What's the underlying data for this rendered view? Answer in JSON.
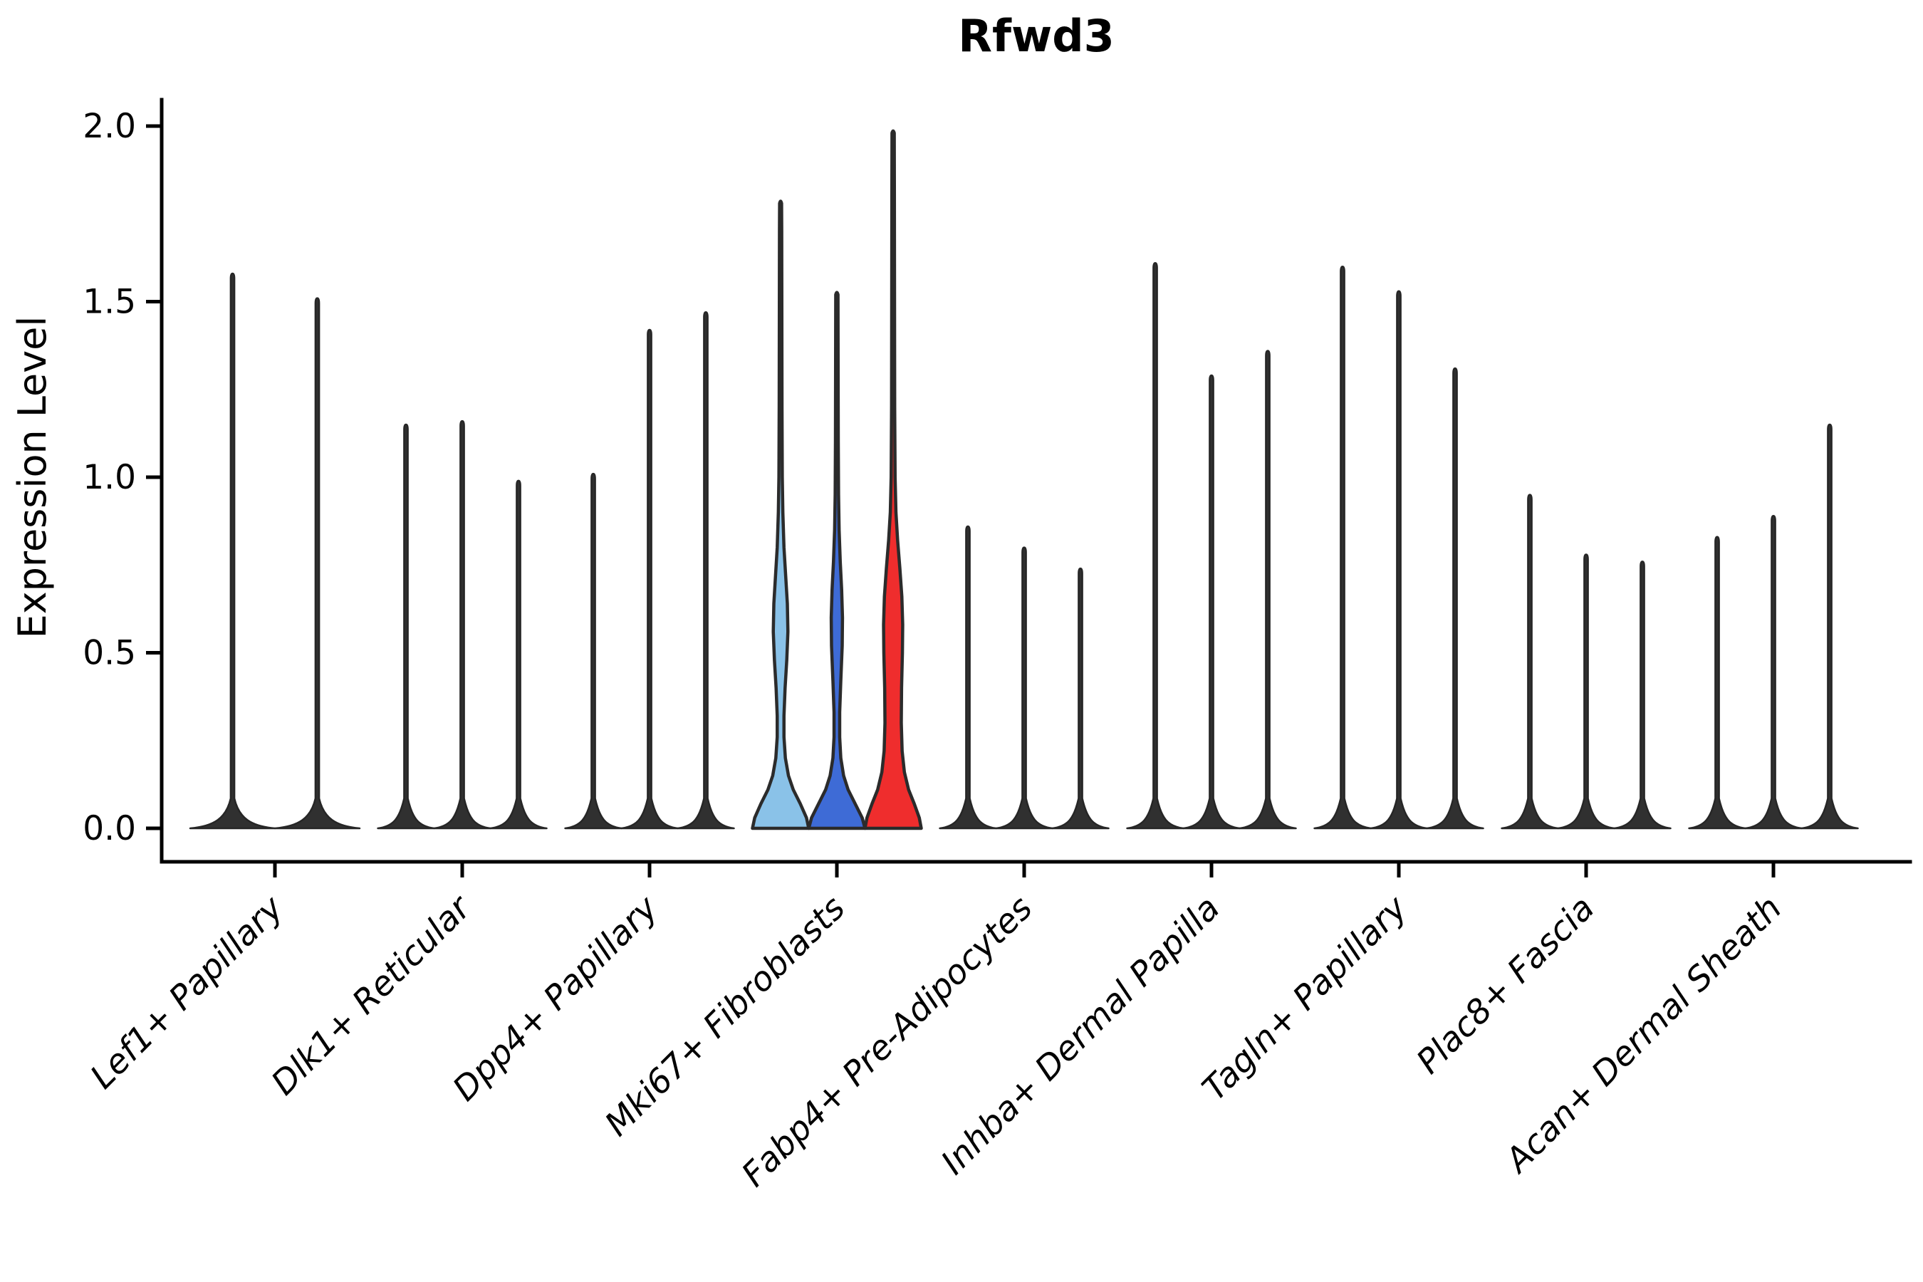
{
  "title": "Rfwd3",
  "y_axis": {
    "label": "Expression Level",
    "tick_labels": [
      "0.0",
      "0.5",
      "1.0",
      "1.5",
      "2.0"
    ],
    "tick_values": [
      0.0,
      0.5,
      1.0,
      1.5,
      2.0
    ]
  },
  "x_axis": {
    "categories": [
      "Lef1+ Papillary",
      "Dlk1+ Reticular",
      "Dpp4+ Papillary",
      "Mki67+ Fibroblasts",
      "Fabp4+ Pre-Adipocytes",
      "Inhba+ Dermal Papilla",
      "Tagln+ Papillary",
      "Plac8+ Fascia",
      "Acan+ Dermal Sheath"
    ]
  },
  "colors": {
    "spike_fill": "#303030",
    "spike_stroke": "#262626",
    "violin_outline": "#2b2b2b",
    "light_blue": "#8AC2E8",
    "blue": "#3E6BD6",
    "red": "#EF2D2D",
    "background": "#ffffff"
  },
  "chart_data": {
    "type": "violin",
    "title": "Rfwd3",
    "xlabel": "",
    "ylabel": "Expression Level",
    "ylim": [
      0,
      2.07
    ],
    "yticks": [
      0.0,
      0.5,
      1.0,
      1.5,
      2.0
    ],
    "grid": false,
    "legend": "none",
    "x_tick_angle_deg": 45,
    "categories": [
      "Lef1+ Papillary",
      "Dlk1+ Reticular",
      "Dpp4+ Papillary",
      "Mki67+ Fibroblasts",
      "Fabp4+ Pre-Adipocytes",
      "Inhba+ Dermal Papilla",
      "Tagln+ Papillary",
      "Plac8+ Fascia",
      "Acan+ Dermal Sheath"
    ],
    "groups": [
      {
        "category": "Lef1+ Papillary",
        "violins": [
          {
            "max": 1.58,
            "style": "spike",
            "fill": "#303030"
          },
          {
            "max": 1.51,
            "style": "spike",
            "fill": "#303030"
          }
        ]
      },
      {
        "category": "Dlk1+ Reticular",
        "violins": [
          {
            "max": 1.15,
            "style": "spike",
            "fill": "#303030"
          },
          {
            "max": 1.16,
            "style": "spike",
            "fill": "#303030"
          },
          {
            "max": 0.99,
            "style": "spike",
            "fill": "#303030"
          }
        ]
      },
      {
        "category": "Dpp4+ Papillary",
        "violins": [
          {
            "max": 1.01,
            "style": "spike",
            "fill": "#303030"
          },
          {
            "max": 1.42,
            "style": "spike",
            "fill": "#303030"
          },
          {
            "max": 1.47,
            "style": "spike",
            "fill": "#303030"
          }
        ]
      },
      {
        "category": "Mki67+ Fibroblasts",
        "violins": [
          {
            "max": 1.78,
            "style": "violin",
            "fill": "#8AC2E8",
            "profile": [
              [
                0,
                1.0
              ],
              [
                0.03,
                0.92
              ],
              [
                0.07,
                0.7
              ],
              [
                0.11,
                0.45
              ],
              [
                0.15,
                0.28
              ],
              [
                0.2,
                0.17
              ],
              [
                0.26,
                0.12
              ],
              [
                0.32,
                0.12
              ],
              [
                0.4,
                0.16
              ],
              [
                0.48,
                0.22
              ],
              [
                0.56,
                0.26
              ],
              [
                0.64,
                0.24
              ],
              [
                0.72,
                0.18
              ],
              [
                0.8,
                0.12
              ],
              [
                0.9,
                0.08
              ],
              [
                1.0,
                0.06
              ],
              [
                1.2,
                0.05
              ],
              [
                1.45,
                0.045
              ],
              [
                1.7,
                0.04
              ],
              [
                1.78,
                0.035
              ]
            ]
          },
          {
            "max": 1.52,
            "style": "violin",
            "fill": "#3E6BD6",
            "profile": [
              [
                0,
                1.0
              ],
              [
                0.03,
                0.9
              ],
              [
                0.07,
                0.65
              ],
              [
                0.11,
                0.4
              ],
              [
                0.15,
                0.24
              ],
              [
                0.2,
                0.14
              ],
              [
                0.26,
                0.1
              ],
              [
                0.33,
                0.1
              ],
              [
                0.42,
                0.14
              ],
              [
                0.52,
                0.19
              ],
              [
                0.6,
                0.2
              ],
              [
                0.68,
                0.17
              ],
              [
                0.76,
                0.12
              ],
              [
                0.85,
                0.08
              ],
              [
                0.95,
                0.06
              ],
              [
                1.1,
                0.05
              ],
              [
                1.3,
                0.045
              ],
              [
                1.52,
                0.04
              ]
            ]
          },
          {
            "max": 1.98,
            "style": "violin",
            "fill": "#EF2D2D",
            "profile": [
              [
                0,
                1.0
              ],
              [
                0.03,
                0.93
              ],
              [
                0.07,
                0.75
              ],
              [
                0.11,
                0.55
              ],
              [
                0.16,
                0.4
              ],
              [
                0.22,
                0.32
              ],
              [
                0.3,
                0.29
              ],
              [
                0.4,
                0.3
              ],
              [
                0.5,
                0.33
              ],
              [
                0.58,
                0.34
              ],
              [
                0.66,
                0.31
              ],
              [
                0.74,
                0.24
              ],
              [
                0.82,
                0.16
              ],
              [
                0.9,
                0.1
              ],
              [
                1.0,
                0.07
              ],
              [
                1.2,
                0.055
              ],
              [
                1.5,
                0.05
              ],
              [
                1.8,
                0.045
              ],
              [
                1.98,
                0.04
              ]
            ]
          }
        ]
      },
      {
        "category": "Fabp4+ Pre-Adipocytes",
        "violins": [
          {
            "max": 0.86,
            "style": "spike",
            "fill": "#303030"
          },
          {
            "max": 0.8,
            "style": "spike",
            "fill": "#303030"
          },
          {
            "max": 0.74,
            "style": "spike",
            "fill": "#303030"
          }
        ]
      },
      {
        "category": "Inhba+ Dermal Papilla",
        "violins": [
          {
            "max": 1.61,
            "style": "spike",
            "fill": "#303030"
          },
          {
            "max": 1.29,
            "style": "spike",
            "fill": "#303030"
          },
          {
            "max": 1.36,
            "style": "spike",
            "fill": "#303030"
          }
        ]
      },
      {
        "category": "Tagln+ Papillary",
        "violins": [
          {
            "max": 1.6,
            "style": "spike",
            "fill": "#303030"
          },
          {
            "max": 1.53,
            "style": "spike",
            "fill": "#303030"
          },
          {
            "max": 1.31,
            "style": "spike",
            "fill": "#303030"
          }
        ]
      },
      {
        "category": "Plac8+ Fascia",
        "violins": [
          {
            "max": 0.95,
            "style": "spike",
            "fill": "#303030"
          },
          {
            "max": 0.78,
            "style": "spike",
            "fill": "#303030"
          },
          {
            "max": 0.76,
            "style": "spike",
            "fill": "#303030"
          }
        ]
      },
      {
        "category": "Acan+ Dermal Sheath",
        "violins": [
          {
            "max": 0.83,
            "style": "spike",
            "fill": "#303030"
          },
          {
            "max": 0.89,
            "style": "spike",
            "fill": "#303030"
          },
          {
            "max": 1.15,
            "style": "spike",
            "fill": "#303030"
          }
        ]
      }
    ]
  }
}
